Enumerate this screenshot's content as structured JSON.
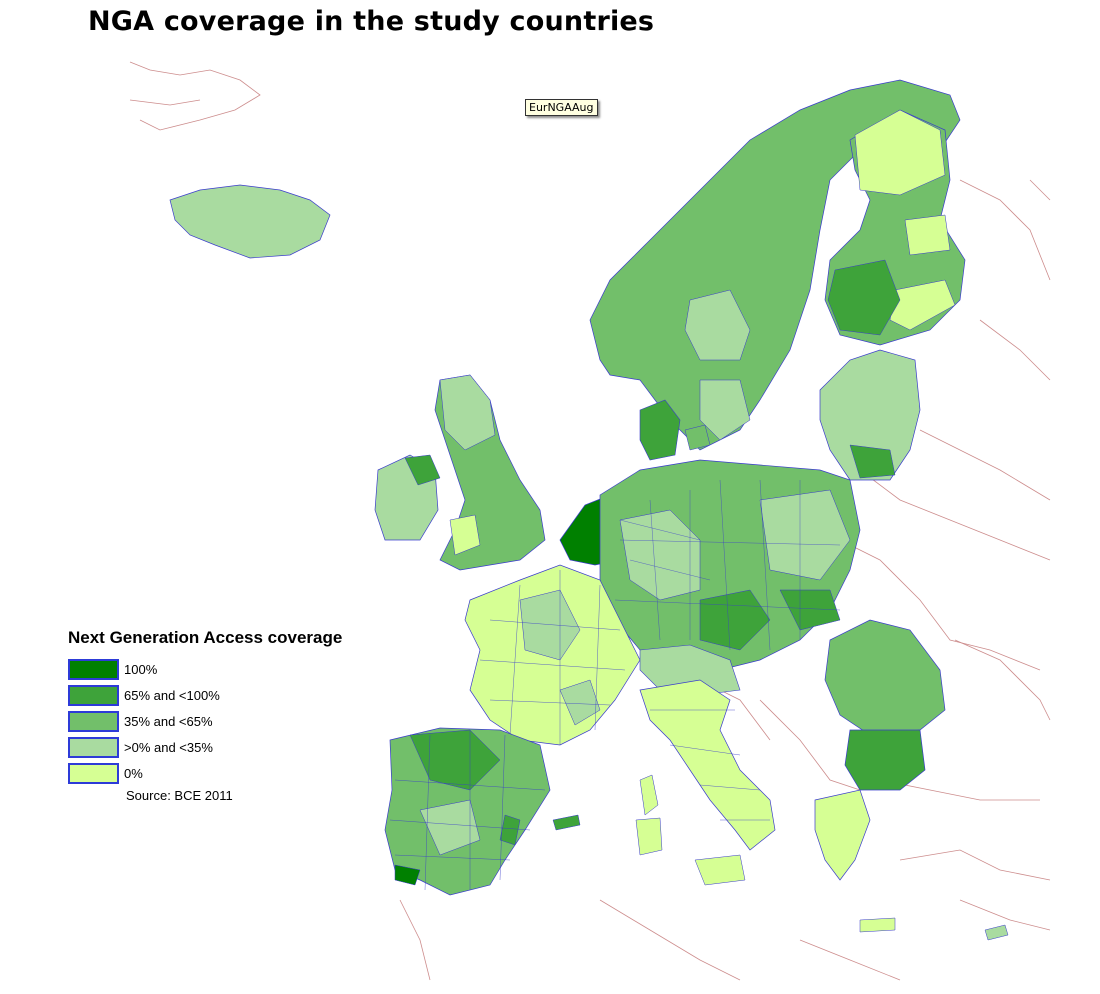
{
  "header": {
    "title": "NGA coverage in the study countries"
  },
  "tooltip": {
    "label": "EurNGAAug"
  },
  "legend": {
    "title": "Next Generation Access coverage",
    "items": [
      {
        "label": "100%",
        "color": "#008000"
      },
      {
        "label": "65% and <100%",
        "color": "#3ea33a"
      },
      {
        "label": "35% and <65%",
        "color": "#72bf6a"
      },
      {
        "label": ">0% and <35%",
        "color": "#a9dba0"
      },
      {
        "label": "0%",
        "color": "#d6ff94"
      }
    ],
    "source": "Source: BCE 2011"
  },
  "map": {
    "colors": {
      "boundary": "#3a3ccc",
      "outside_border": "#b45a5a",
      "background": "#ffffff"
    }
  }
}
